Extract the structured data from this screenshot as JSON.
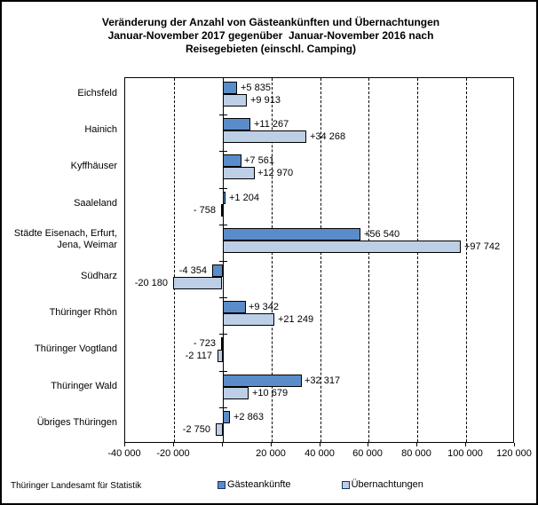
{
  "chart_data": {
    "type": "bar",
    "orientation": "horizontal",
    "title": "Veränderung der Anzahl von Gästeankünften und Übernachtungen\nJanuar-November 2017 gegenüber  Januar-November 2016 nach\nReisegebieten (einschl. Camping)",
    "categories": [
      "Eichsfeld",
      "Hainich",
      "Kyffhäuser",
      "Saaleland",
      "Städte Eisenach, Erfurt,\nJena, Weimar",
      "Südharz",
      "Thüringer Rhön",
      "Thüringer Vogtland",
      "Thüringer Wald",
      "Übriges Thüringen"
    ],
    "series": [
      {
        "name": "Gästeankünfte",
        "color": "#5A8CC9",
        "values": [
          5835,
          11267,
          7561,
          1204,
          56540,
          -4354,
          9342,
          -723,
          32317,
          2863
        ],
        "labels": [
          "+5 835",
          "+11 267",
          "+7 561",
          "+1 204",
          "+56 540",
          "-4 354",
          "+9 342",
          "- 723",
          "+32 317",
          "+2 863"
        ]
      },
      {
        "name": "Übernachtungen",
        "color": "#BCCFE6",
        "values": [
          9913,
          34268,
          12970,
          -758,
          97742,
          -20180,
          21249,
          -2117,
          10679,
          -2750
        ],
        "labels": [
          "+9 913",
          "+34 268",
          "+12 970",
          "- 758",
          "+97 742",
          "-20 180",
          "+21 249",
          "-2 117",
          "+10 679",
          "-2 750"
        ]
      }
    ],
    "xlim": [
      -40000,
      120000
    ],
    "x_ticks": [
      {
        "value": -40000,
        "label": "-40 000"
      },
      {
        "value": -20000,
        "label": "-20 000"
      },
      {
        "value": 0,
        "label": ""
      },
      {
        "value": 20000,
        "label": "20 000"
      },
      {
        "value": 40000,
        "label": "40 000"
      },
      {
        "value": 60000,
        "label": "60 000"
      },
      {
        "value": 80000,
        "label": "80 000"
      },
      {
        "value": 100000,
        "label": "100 000"
      },
      {
        "value": 120000,
        "label": "120 000"
      }
    ],
    "gridlines": [
      -20000,
      20000,
      40000,
      60000,
      80000,
      100000
    ],
    "grid": "dashed-vertical",
    "legend_position": "bottom",
    "bar_border_color": "#000000"
  },
  "footer": {
    "source": "Thüringer Landesamt für Statistik"
  }
}
